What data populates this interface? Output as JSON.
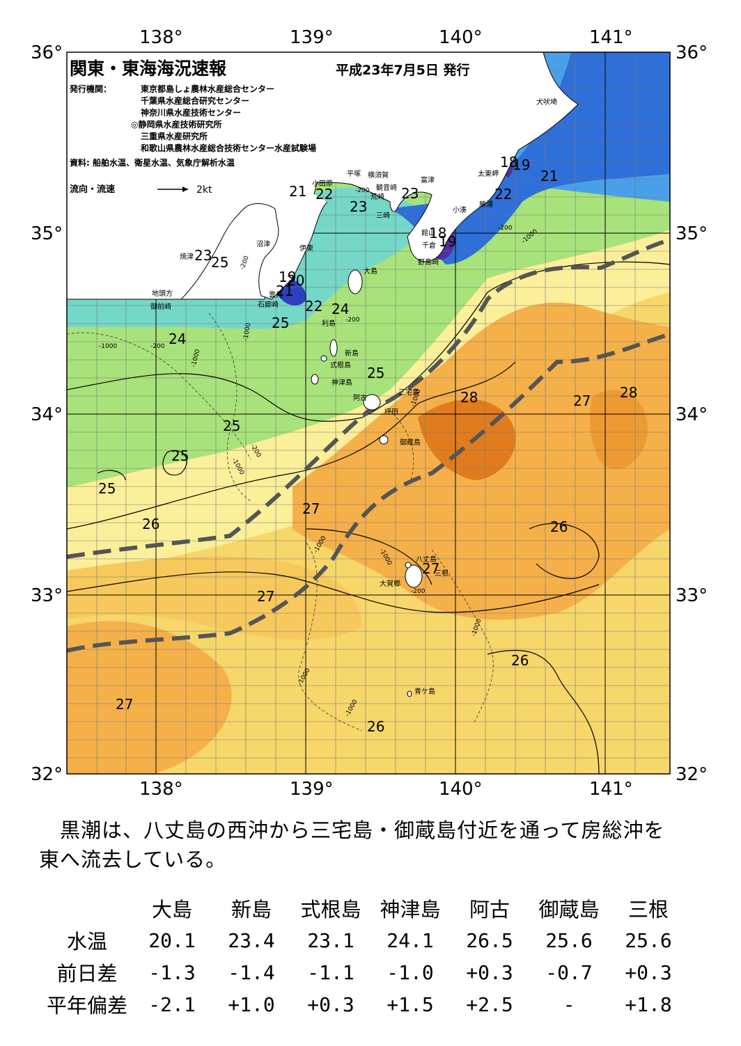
{
  "header": {
    "title": "関東・東海海況速報",
    "date": "平成23年7月5日 発行",
    "issuer_label": "発行機関：",
    "issuers": [
      "東京都島しょ農林水産総合センター",
      "千葉県水産総合研究センター",
      "神奈川県水産技術センター",
      "◎静岡県水産技術研究所",
      "三重県水産研究所",
      "和歌山県農林水産総合技術センター水産試験場"
    ],
    "source": "資料: 船舶水温、衛星水温、気象庁解析水温",
    "flow_legend": "流向・流速",
    "flow_unit": "2kt"
  },
  "axes": {
    "lon_labels": [
      "138°",
      "139°",
      "140°",
      "141°"
    ],
    "lat_labels": [
      "36°",
      "35°",
      "34°",
      "33°",
      "32°"
    ]
  },
  "places": [
    "犬吠埼",
    "太東岬",
    "勝浦",
    "小湊",
    "館山",
    "千倉",
    "野島崎",
    "富津",
    "観音崎",
    "横須賀",
    "荒崎",
    "三崎",
    "平塚",
    "小田原",
    "沼津",
    "伊東",
    "大島",
    "雲見",
    "石廊崎",
    "焼津",
    "地頭方",
    "御前崎",
    "利島",
    "新島",
    "式根島",
    "神津島",
    "三宅島",
    "阿古",
    "坪田",
    "御蔵島",
    "八丈島",
    "大賀郷",
    "三根",
    "青ケ島"
  ],
  "isotherm_labels": [
    "18",
    "19",
    "21",
    "22",
    "23",
    "21",
    "22",
    "23",
    "23",
    "25",
    "19",
    "20",
    "21",
    "22",
    "24",
    "25",
    "24",
    "25",
    "25",
    "25",
    "25",
    "26",
    "27",
    "28",
    "27",
    "28",
    "26",
    "27",
    "27",
    "26",
    "27",
    "26",
    "22",
    "18",
    "19",
    "21"
  ],
  "depth_labels": [
    "-200",
    "-1000"
  ],
  "summary": {
    "line1": "黒潮は、八丈島の西沖から三宅島・御蔵島付近を通って房総沖を",
    "line2": "東へ流去している。"
  },
  "obs_table": {
    "columns": [
      "大島",
      "新島",
      "式根島",
      "神津島",
      "阿古",
      "御蔵島",
      "三根"
    ],
    "rows": [
      {
        "label": "水温",
        "values": [
          "20.1",
          "23.4",
          "23.1",
          "24.1",
          "26.5",
          "25.6",
          "25.6"
        ]
      },
      {
        "label": "前日差",
        "values": [
          "-1.3",
          "-1.4",
          "-1.1",
          "-1.0",
          "+0.3",
          "-0.7",
          "+0.3"
        ]
      },
      {
        "label": "平年偏差",
        "values": [
          "-2.1",
          "+1.0",
          "+0.3",
          "+1.5",
          "+2.5",
          "-",
          "+1.8"
        ]
      }
    ]
  }
}
